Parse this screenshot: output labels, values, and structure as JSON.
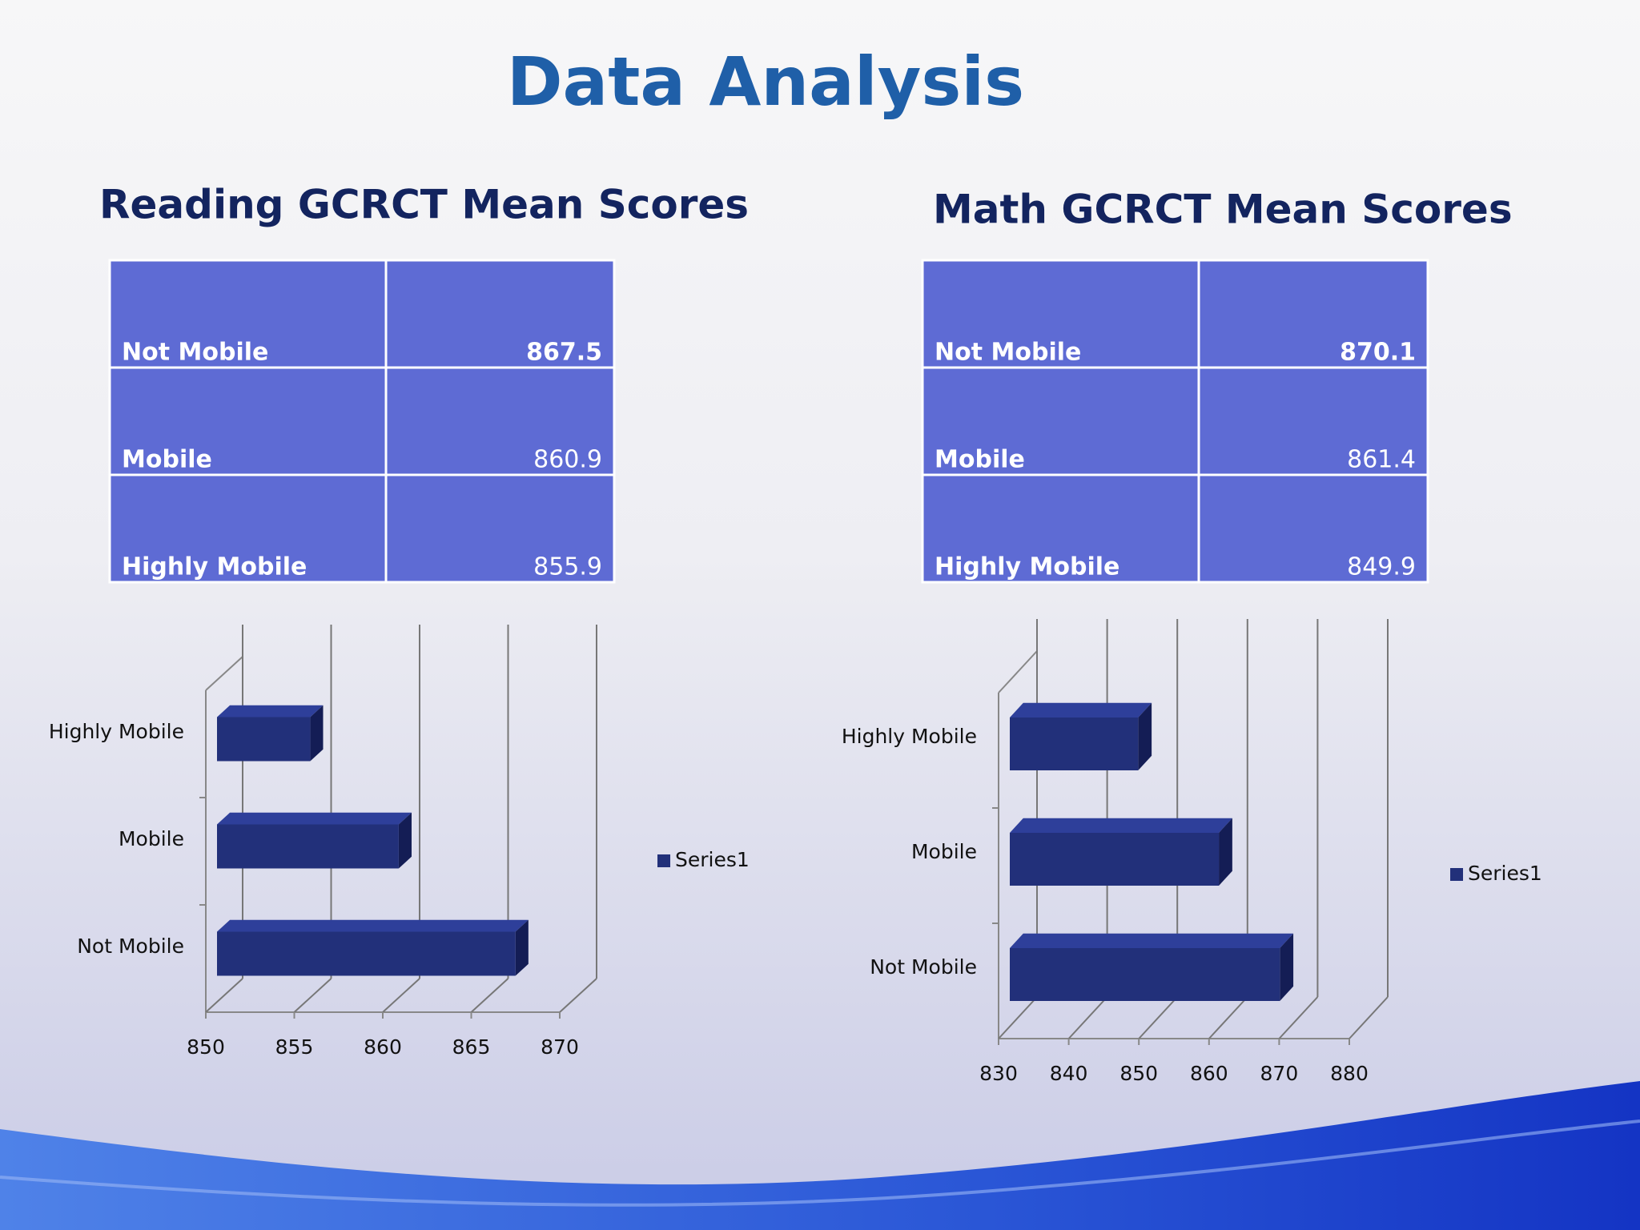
{
  "title": "Data Analysis",
  "tables": [
    {
      "title": "Reading GCRCT Mean Scores",
      "rows": [
        [
          "Not Mobile",
          867.5
        ],
        [
          "Mobile",
          860.9
        ],
        [
          "Highly Mobile",
          855.9
        ]
      ]
    },
    {
      "title": "Math GCRCT Mean Scores",
      "rows": [
        [
          "Not Mobile",
          870.1
        ],
        [
          "Mobile",
          861.4
        ],
        [
          "Highly Mobile",
          849.9
        ]
      ]
    }
  ],
  "chart_data": [
    {
      "type": "bar3d",
      "orientation": "horizontal",
      "categories": [
        "Not Mobile",
        "Mobile",
        "Highly Mobile"
      ],
      "series": [
        {
          "name": "Series1",
          "color": "#22307a",
          "values": [
            867.5,
            860.9,
            855.9
          ]
        }
      ],
      "xlim": [
        850,
        870
      ],
      "xticks": [
        850,
        855,
        860,
        865,
        870
      ],
      "grid": true,
      "legend": "right"
    },
    {
      "type": "bar3d",
      "orientation": "horizontal",
      "categories": [
        "Not Mobile",
        "Mobile",
        "Highly Mobile"
      ],
      "series": [
        {
          "name": "Series1",
          "color": "#22307a",
          "values": [
            870.1,
            861.4,
            849.9
          ]
        }
      ],
      "xlim": [
        830,
        880
      ],
      "xticks": [
        830,
        840,
        850,
        860,
        870,
        880
      ],
      "grid": true,
      "legend": "right"
    }
  ]
}
